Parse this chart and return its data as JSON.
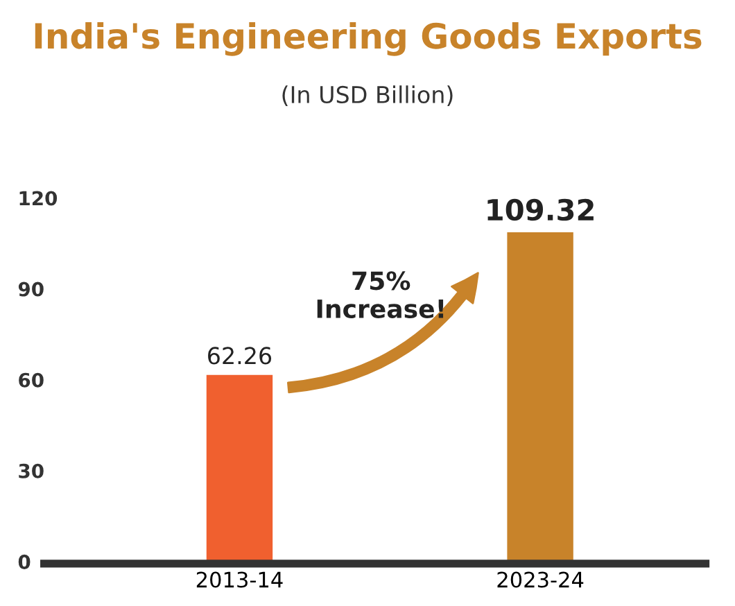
{
  "chart_data": {
    "type": "bar",
    "title": "India's Engineering Goods Exports",
    "subtitle": "(In USD Billion)",
    "categories": [
      "2013-14",
      "2023-24"
    ],
    "values": [
      62.26,
      109.32
    ],
    "colors": [
      "#f0602f",
      "#c8832a"
    ],
    "ylim": [
      0,
      120
    ],
    "yticks": [
      0,
      30,
      60,
      90,
      120
    ],
    "grid": false,
    "data_labels": true,
    "annotations": [
      "75%\nIncrease!"
    ]
  }
}
